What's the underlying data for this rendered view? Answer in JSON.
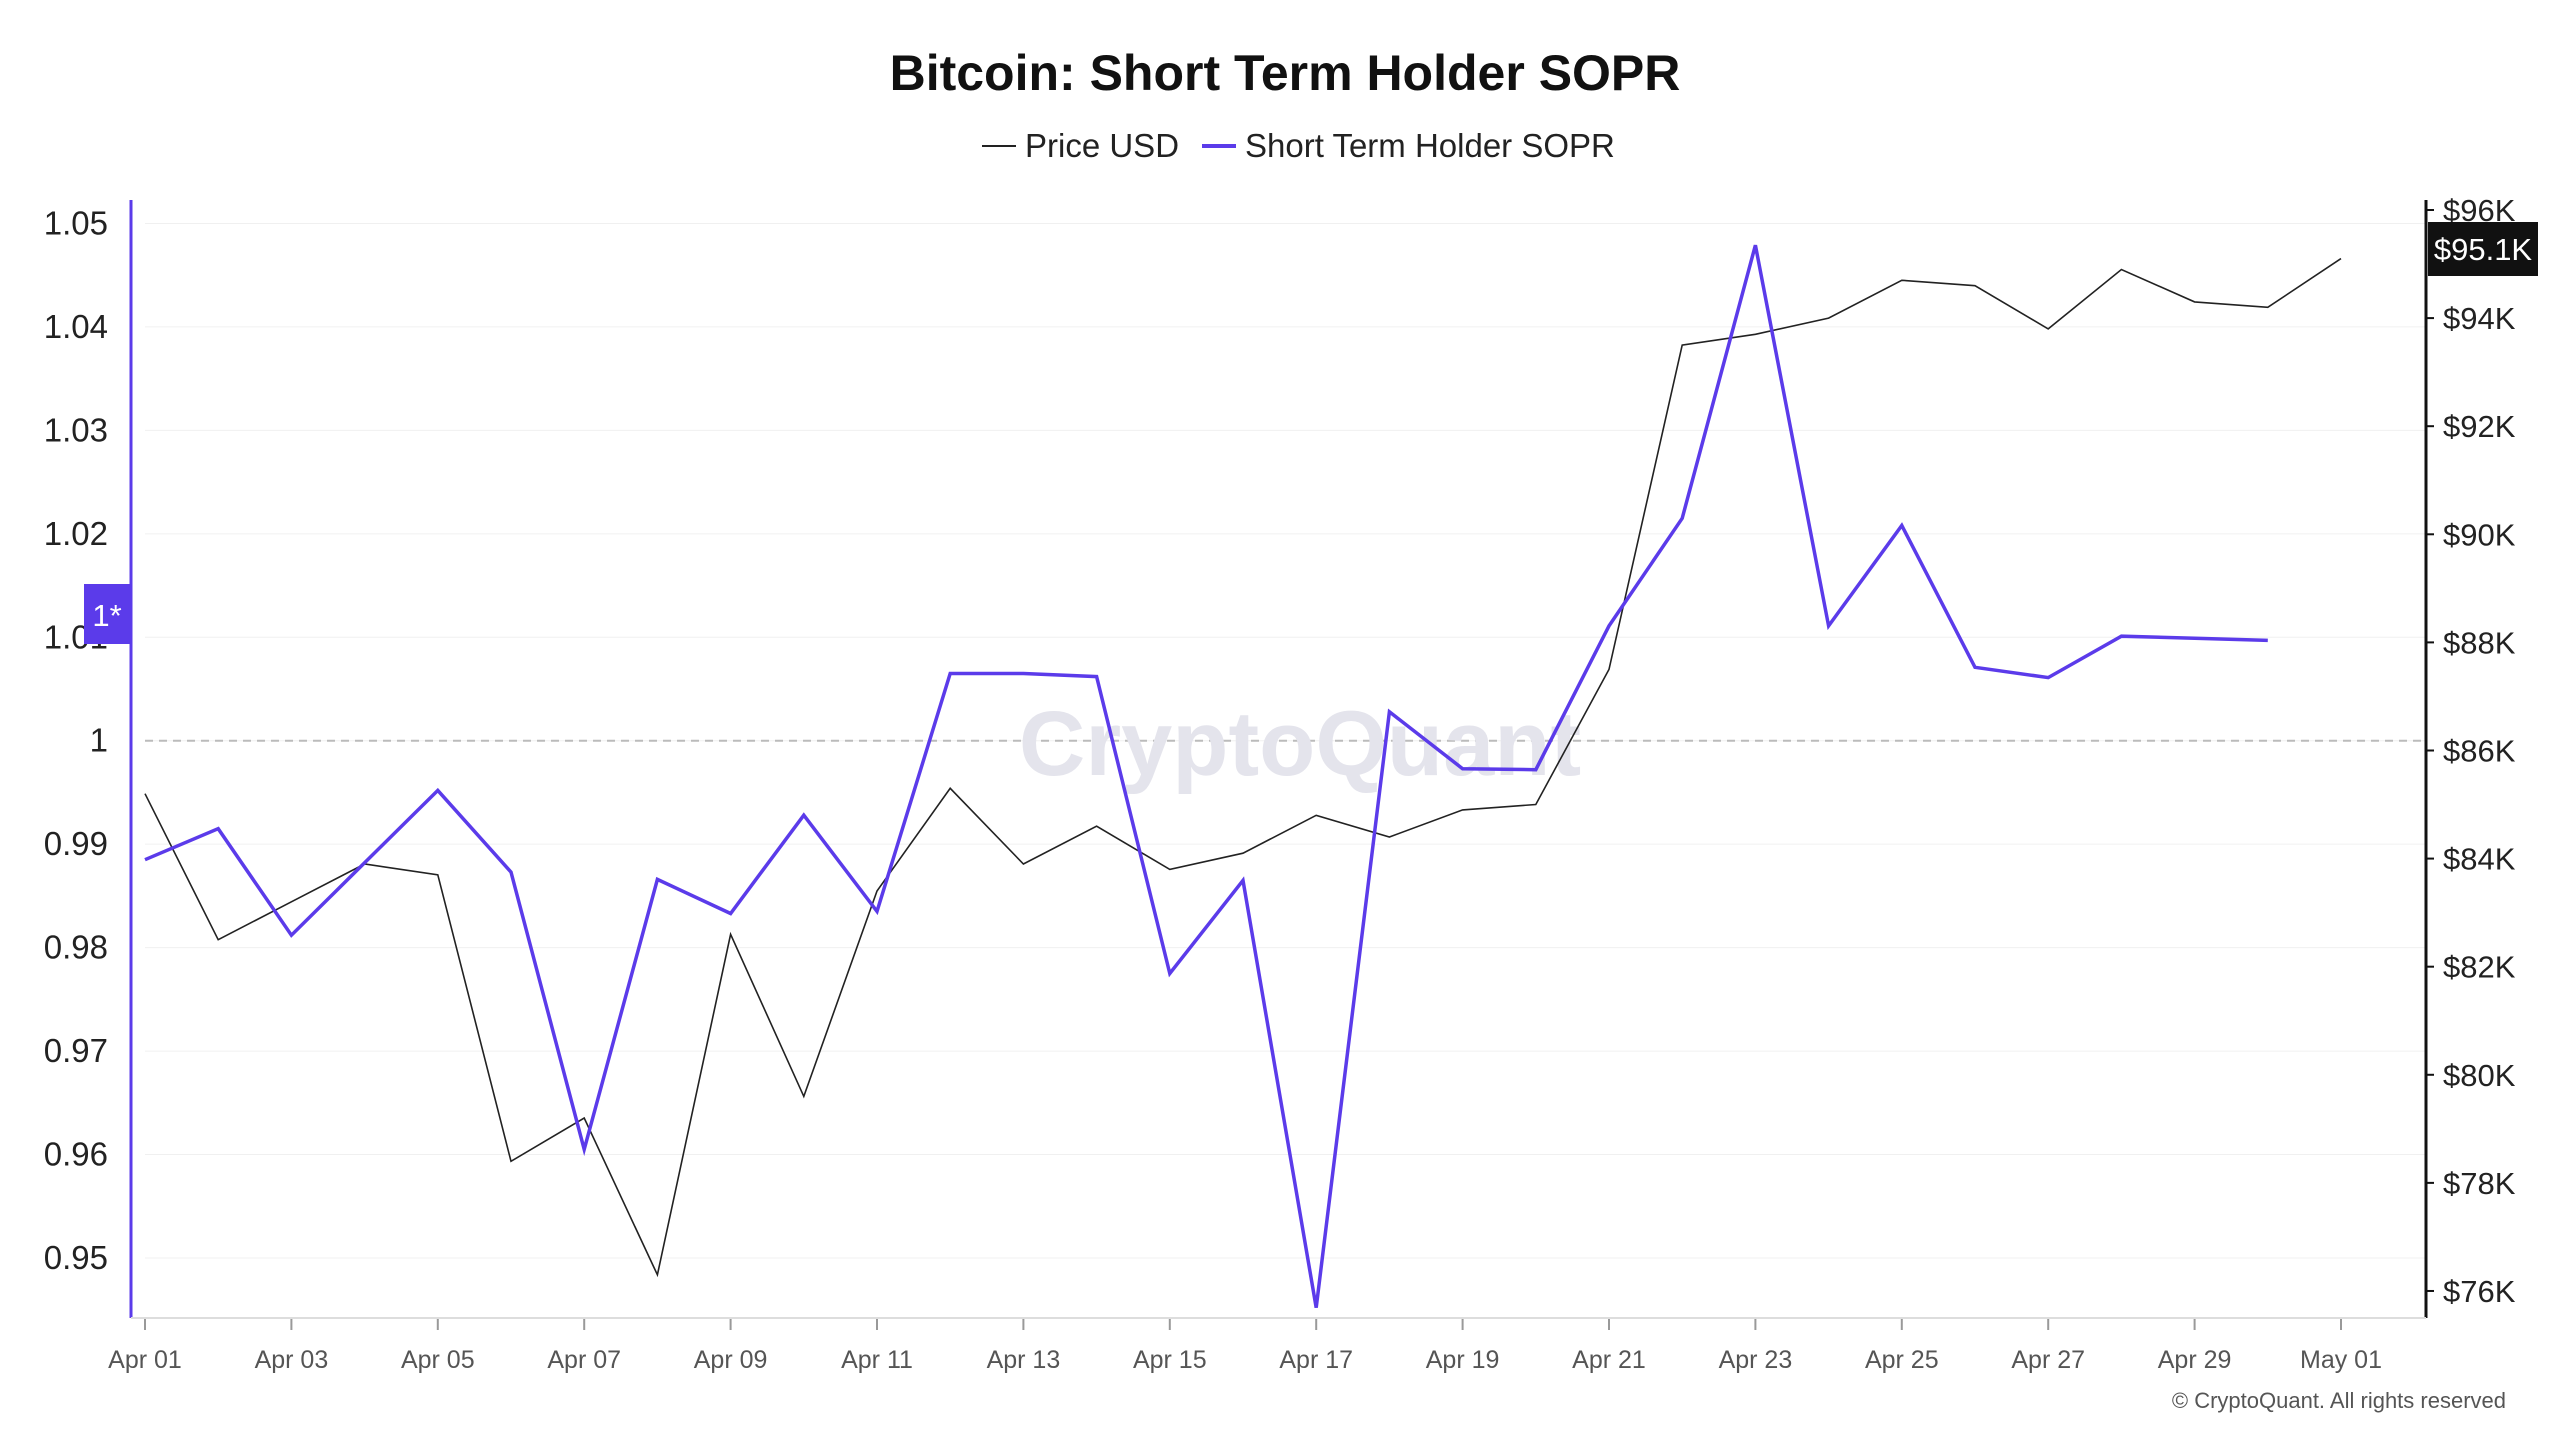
{
  "chart_data": {
    "type": "line",
    "title": "Bitcoin: Short Term Holder SOPR",
    "legend": {
      "placement": "top-center",
      "items": [
        {
          "name": "Price USD",
          "color": "#222222"
        },
        {
          "name": "Short Term Holder SOPR",
          "color": "#5b3bea"
        }
      ]
    },
    "x": [
      "Apr 01",
      "Apr 02",
      "Apr 03",
      "Apr 04",
      "Apr 05",
      "Apr 06",
      "Apr 07",
      "Apr 08",
      "Apr 09",
      "Apr 10",
      "Apr 11",
      "Apr 12",
      "Apr 13",
      "Apr 14",
      "Apr 15",
      "Apr 16",
      "Apr 17",
      "Apr 18",
      "Apr 19",
      "Apr 20",
      "Apr 21",
      "Apr 22",
      "Apr 23",
      "Apr 24",
      "Apr 25",
      "Apr 26",
      "Apr 27",
      "Apr 28",
      "Apr 29",
      "Apr 30",
      "May 01"
    ],
    "x_tick_labels": [
      "Apr 01",
      "Apr 03",
      "Apr 05",
      "Apr 07",
      "Apr 09",
      "Apr 11",
      "Apr 13",
      "Apr 15",
      "Apr 17",
      "Apr 19",
      "Apr 21",
      "Apr 23",
      "Apr 25",
      "Apr 27",
      "Apr 29",
      "May 01"
    ],
    "series": [
      {
        "name": "Price USD",
        "axis": "right",
        "color": "#222222",
        "values": [
          85200,
          82500,
          83200,
          83900,
          83700,
          78400,
          79200,
          76300,
          82600,
          79600,
          83400,
          85300,
          83900,
          84600,
          83800,
          84100,
          84800,
          84400,
          84900,
          85000,
          87500,
          93500,
          93700,
          94000,
          94700,
          94600,
          93800,
          94900,
          94300,
          94200,
          95100
        ]
      },
      {
        "name": "Short Term Holder SOPR",
        "axis": "left",
        "color": "#5b3bea",
        "values": [
          0.9885,
          0.9915,
          0.9812,
          0.9882,
          0.9952,
          0.9873,
          0.9605,
          0.9866,
          0.9833,
          0.9928,
          0.9835,
          1.0065,
          1.0065,
          1.0062,
          0.9775,
          0.9865,
          0.9452,
          1.0028,
          0.9973,
          0.9972,
          1.0111,
          1.0215,
          1.0479,
          1.0111,
          1.0208,
          1.0071,
          1.0061,
          1.0101,
          1.0099,
          1.0097,
          null
        ]
      }
    ],
    "y_left": {
      "ticks": [
        "1.05",
        "1.04",
        "1.03",
        "1.02",
        "1.01",
        "1",
        "0.99",
        "0.98",
        "0.97",
        "0.96",
        "0.95"
      ],
      "range": [
        0.9442,
        1.0513
      ],
      "reference_line": 1
    },
    "y_right": {
      "ticks": [
        "$96K",
        "$94K",
        "$92K",
        "$90K",
        "$88K",
        "$86K",
        "$84K",
        "$82K",
        "$80K",
        "$78K",
        "$76K"
      ],
      "range": [
        75500,
        96000
      ]
    },
    "grid": true
  },
  "badges": {
    "left_marker": "1*",
    "right_marker": "$95.1K",
    "left_marker_color": "#5b3bea",
    "right_marker_color": "#111111"
  },
  "watermark": "CryptoQuant",
  "copyright": "© CryptoQuant. All rights reserved"
}
